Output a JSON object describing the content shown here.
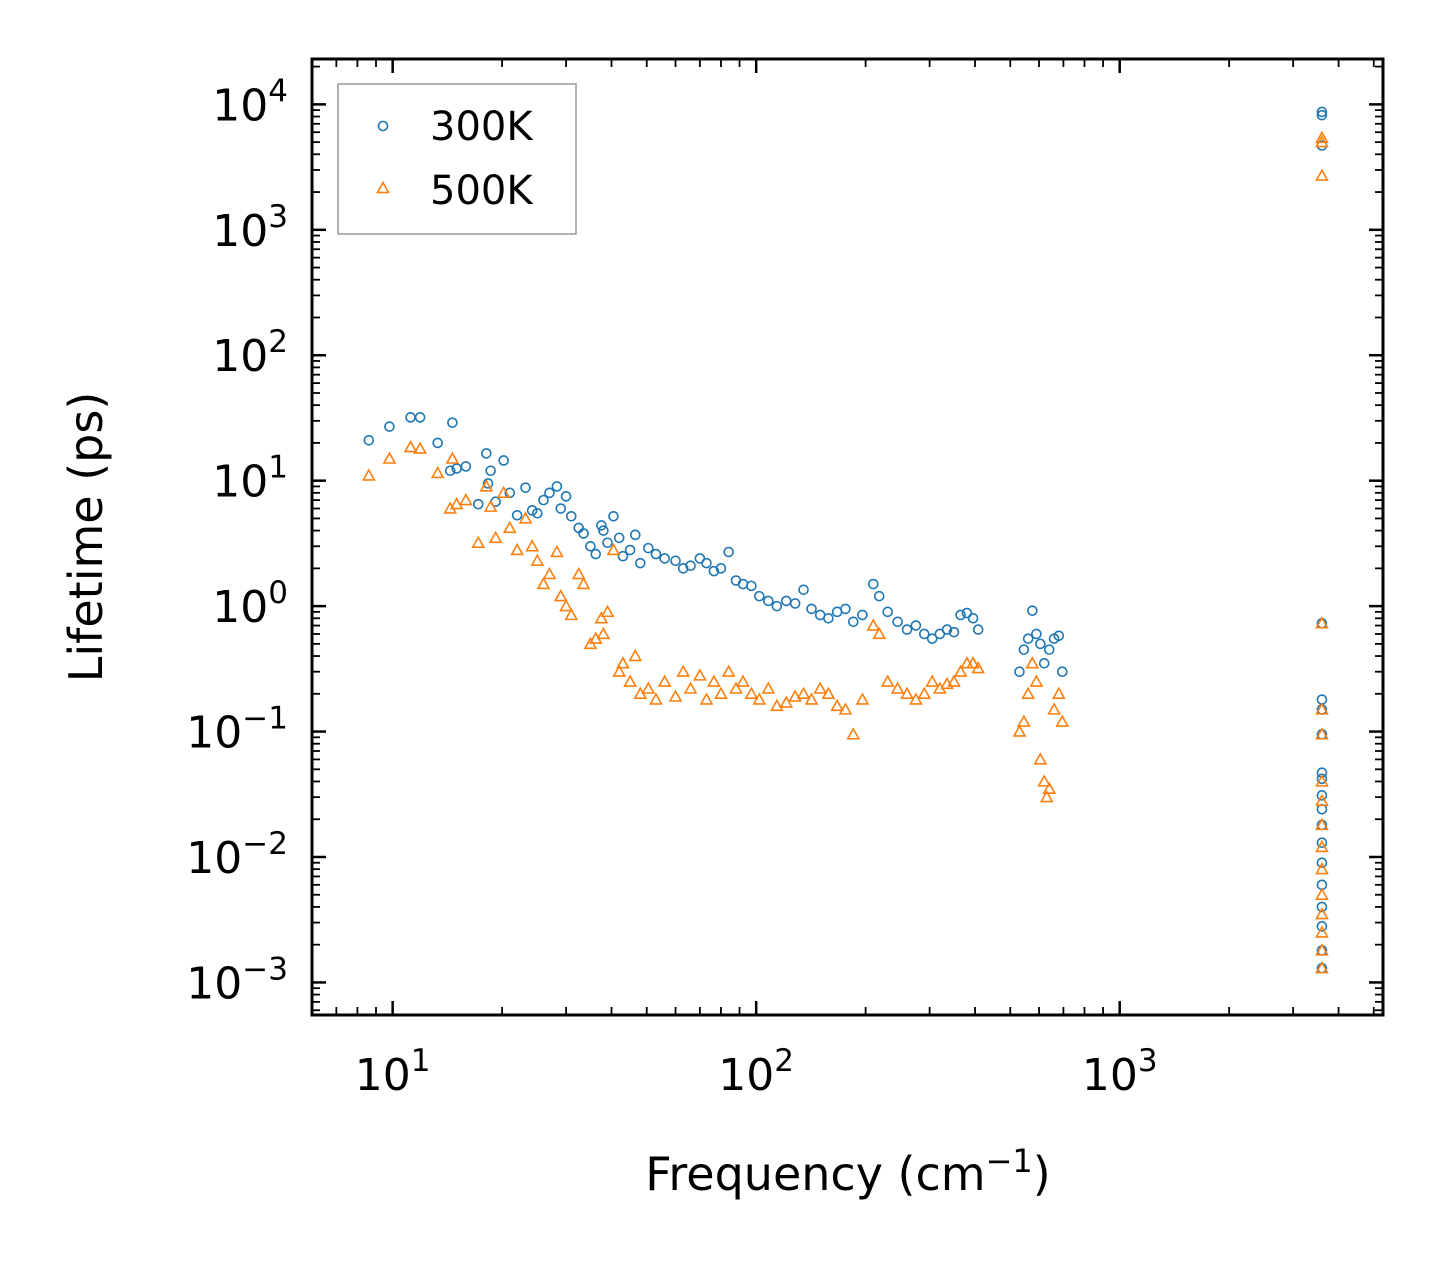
{
  "chart_data": {
    "type": "scatter",
    "title": "",
    "xlabel": "Frequency (cm",
    "xlabel_exponent": "−1",
    "xlabel_suffix": ")",
    "ylabel": "Lifetime (ps)",
    "xscale": "log",
    "yscale": "log",
    "xlim": [
      6.0,
      5300
    ],
    "ylim": [
      0.00055,
      23000
    ],
    "x_tick_labels": [
      {
        "base": "10",
        "exp": "1",
        "value": 10
      },
      {
        "base": "10",
        "exp": "2",
        "value": 100
      },
      {
        "base": "10",
        "exp": "3",
        "value": 1000
      }
    ],
    "y_tick_labels": [
      {
        "base": "10",
        "exp": "4",
        "value": 10000
      },
      {
        "base": "10",
        "exp": "3",
        "value": 1000
      },
      {
        "base": "10",
        "exp": "2",
        "value": 100
      },
      {
        "base": "10",
        "exp": "1",
        "value": 10
      },
      {
        "base": "10",
        "exp": "0",
        "value": 1
      },
      {
        "base": "10",
        "exp": "−1",
        "value": 0.1
      },
      {
        "base": "10",
        "exp": "−2",
        "value": 0.01
      },
      {
        "base": "10",
        "exp": "−3",
        "value": 0.001
      }
    ],
    "legend_position": "top-left",
    "series": [
      {
        "name": "300K",
        "marker": "circle-open",
        "color": "#1f77b4",
        "points": [
          [
            8.6,
            21
          ],
          [
            9.8,
            27
          ],
          [
            11.2,
            32
          ],
          [
            11.9,
            32
          ],
          [
            13.3,
            20
          ],
          [
            14.4,
            12
          ],
          [
            14.6,
            29
          ],
          [
            15.0,
            12.5
          ],
          [
            15.9,
            13
          ],
          [
            17.2,
            6.5
          ],
          [
            18.1,
            16.5
          ],
          [
            18.3,
            9.5
          ],
          [
            18.6,
            12
          ],
          [
            19.2,
            6.8
          ],
          [
            20.2,
            14.5
          ],
          [
            21.0,
            8.0
          ],
          [
            22.0,
            5.3
          ],
          [
            23.2,
            8.8
          ],
          [
            24.2,
            5.8
          ],
          [
            25.0,
            5.5
          ],
          [
            26.0,
            7.0
          ],
          [
            27.0,
            8.0
          ],
          [
            28.3,
            9.0
          ],
          [
            29.0,
            6.0
          ],
          [
            30.0,
            7.5
          ],
          [
            31.0,
            5.2
          ],
          [
            32.5,
            4.2
          ],
          [
            33.5,
            3.8
          ],
          [
            35.0,
            3.0
          ],
          [
            36.2,
            2.6
          ],
          [
            37.5,
            4.4
          ],
          [
            38.0,
            4.0
          ],
          [
            39.0,
            3.2
          ],
          [
            40.5,
            5.2
          ],
          [
            42.0,
            3.5
          ],
          [
            43.0,
            2.5
          ],
          [
            45.0,
            2.8
          ],
          [
            46.5,
            3.7
          ],
          [
            48.0,
            2.2
          ],
          [
            50.5,
            2.9
          ],
          [
            53.0,
            2.6
          ],
          [
            56.0,
            2.4
          ],
          [
            60.0,
            2.3
          ],
          [
            63.0,
            2.0
          ],
          [
            66.0,
            2.1
          ],
          [
            70.0,
            2.4
          ],
          [
            73.0,
            2.2
          ],
          [
            76.5,
            1.9
          ],
          [
            80.0,
            2.0
          ],
          [
            84.0,
            2.7
          ],
          [
            88.0,
            1.6
          ],
          [
            92.0,
            1.5
          ],
          [
            97.0,
            1.45
          ],
          [
            102.0,
            1.2
          ],
          [
            108.0,
            1.1
          ],
          [
            114.0,
            1.0
          ],
          [
            121.0,
            1.1
          ],
          [
            128.0,
            1.05
          ],
          [
            135.0,
            1.35
          ],
          [
            142.0,
            0.95
          ],
          [
            150.0,
            0.85
          ],
          [
            158.0,
            0.8
          ],
          [
            167.0,
            0.9
          ],
          [
            176.0,
            0.95
          ],
          [
            185.0,
            0.75
          ],
          [
            196.0,
            0.85
          ],
          [
            210.0,
            1.5
          ],
          [
            218.0,
            1.2
          ],
          [
            230.0,
            0.9
          ],
          [
            245.0,
            0.75
          ],
          [
            260.0,
            0.65
          ],
          [
            275.0,
            0.7
          ],
          [
            290.0,
            0.6
          ],
          [
            305.0,
            0.55
          ],
          [
            320.0,
            0.6
          ],
          [
            335.0,
            0.65
          ],
          [
            350.0,
            0.62
          ],
          [
            365.0,
            0.85
          ],
          [
            380.0,
            0.88
          ],
          [
            395.0,
            0.8
          ],
          [
            408.0,
            0.65
          ],
          [
            530.0,
            0.3
          ],
          [
            545.0,
            0.45
          ],
          [
            560.0,
            0.55
          ],
          [
            575.0,
            0.92
          ],
          [
            590.0,
            0.6
          ],
          [
            605.0,
            0.5
          ],
          [
            620.0,
            0.35
          ],
          [
            640.0,
            0.45
          ],
          [
            660.0,
            0.55
          ],
          [
            680.0,
            0.58
          ],
          [
            695.0,
            0.3
          ],
          [
            3600.0,
            8700
          ],
          [
            3600.0,
            8200
          ],
          [
            3600.0,
            4700
          ],
          [
            3600.0,
            0.73
          ],
          [
            3600.0,
            0.18
          ],
          [
            3600.0,
            0.15
          ],
          [
            3600.0,
            0.095
          ],
          [
            3600.0,
            0.047
          ],
          [
            3600.0,
            0.042
          ],
          [
            3600.0,
            0.031
          ],
          [
            3600.0,
            0.024
          ],
          [
            3600.0,
            0.018
          ],
          [
            3600.0,
            0.013
          ],
          [
            3600.0,
            0.009
          ],
          [
            3600.0,
            0.006
          ],
          [
            3600.0,
            0.004
          ],
          [
            3600.0,
            0.0028
          ],
          [
            3600.0,
            0.0018
          ],
          [
            3600.0,
            0.0013
          ]
        ]
      },
      {
        "name": "500K",
        "marker": "triangle-open",
        "color": "#ff7f0e",
        "points": [
          [
            8.6,
            11
          ],
          [
            9.8,
            15
          ],
          [
            11.2,
            18.5
          ],
          [
            11.9,
            18
          ],
          [
            13.3,
            11.5
          ],
          [
            14.4,
            6.0
          ],
          [
            14.6,
            15
          ],
          [
            15.0,
            6.5
          ],
          [
            15.9,
            7.0
          ],
          [
            17.2,
            3.2
          ],
          [
            18.1,
            9.0
          ],
          [
            18.6,
            6.2
          ],
          [
            19.2,
            3.5
          ],
          [
            20.2,
            8.0
          ],
          [
            21.0,
            4.2
          ],
          [
            22.0,
            2.8
          ],
          [
            23.2,
            5.0
          ],
          [
            24.2,
            3.0
          ],
          [
            25.0,
            2.3
          ],
          [
            26.0,
            1.5
          ],
          [
            27.0,
            1.8
          ],
          [
            28.3,
            2.7
          ],
          [
            29.0,
            1.2
          ],
          [
            30.0,
            1.0
          ],
          [
            31.0,
            0.85
          ],
          [
            32.5,
            1.8
          ],
          [
            33.5,
            1.5
          ],
          [
            35.0,
            0.5
          ],
          [
            36.2,
            0.55
          ],
          [
            37.5,
            0.8
          ],
          [
            38.0,
            0.6
          ],
          [
            39.0,
            0.9
          ],
          [
            40.5,
            2.8
          ],
          [
            42.0,
            0.3
          ],
          [
            43.0,
            0.35
          ],
          [
            45.0,
            0.25
          ],
          [
            46.5,
            0.4
          ],
          [
            48.0,
            0.2
          ],
          [
            50.5,
            0.22
          ],
          [
            53.0,
            0.18
          ],
          [
            56.0,
            0.25
          ],
          [
            60.0,
            0.19
          ],
          [
            63.0,
            0.3
          ],
          [
            66.0,
            0.22
          ],
          [
            70.0,
            0.28
          ],
          [
            73.0,
            0.18
          ],
          [
            76.5,
            0.25
          ],
          [
            80.0,
            0.2
          ],
          [
            84.0,
            0.3
          ],
          [
            88.0,
            0.22
          ],
          [
            92.0,
            0.25
          ],
          [
            97.0,
            0.2
          ],
          [
            102.0,
            0.18
          ],
          [
            108.0,
            0.22
          ],
          [
            114.0,
            0.16
          ],
          [
            121.0,
            0.17
          ],
          [
            128.0,
            0.19
          ],
          [
            135.0,
            0.2
          ],
          [
            142.0,
            0.18
          ],
          [
            150.0,
            0.22
          ],
          [
            158.0,
            0.2
          ],
          [
            167.0,
            0.16
          ],
          [
            176.0,
            0.15
          ],
          [
            185.0,
            0.095
          ],
          [
            196.0,
            0.18
          ],
          [
            210.0,
            0.7
          ],
          [
            218.0,
            0.6
          ],
          [
            230.0,
            0.25
          ],
          [
            245.0,
            0.22
          ],
          [
            260.0,
            0.2
          ],
          [
            275.0,
            0.18
          ],
          [
            290.0,
            0.2
          ],
          [
            305.0,
            0.25
          ],
          [
            320.0,
            0.22
          ],
          [
            335.0,
            0.24
          ],
          [
            350.0,
            0.25
          ],
          [
            365.0,
            0.3
          ],
          [
            380.0,
            0.35
          ],
          [
            395.0,
            0.35
          ],
          [
            408.0,
            0.32
          ],
          [
            530.0,
            0.1
          ],
          [
            545.0,
            0.12
          ],
          [
            560.0,
            0.2
          ],
          [
            575.0,
            0.35
          ],
          [
            590.0,
            0.25
          ],
          [
            605.0,
            0.06
          ],
          [
            620.0,
            0.04
          ],
          [
            630.0,
            0.03
          ],
          [
            640.0,
            0.035
          ],
          [
            660.0,
            0.15
          ],
          [
            680.0,
            0.2
          ],
          [
            695.0,
            0.12
          ],
          [
            3600.0,
            5400
          ],
          [
            3600.0,
            5000
          ],
          [
            3600.0,
            2700
          ],
          [
            3600.0,
            0.73
          ],
          [
            3600.0,
            0.15
          ],
          [
            3600.0,
            0.095
          ],
          [
            3600.0,
            0.04
          ],
          [
            3600.0,
            0.028
          ],
          [
            3600.0,
            0.018
          ],
          [
            3600.0,
            0.012
          ],
          [
            3600.0,
            0.008
          ],
          [
            3600.0,
            0.005
          ],
          [
            3600.0,
            0.0035
          ],
          [
            3600.0,
            0.0025
          ],
          [
            3600.0,
            0.0018
          ],
          [
            3600.0,
            0.0013
          ]
        ]
      }
    ]
  }
}
